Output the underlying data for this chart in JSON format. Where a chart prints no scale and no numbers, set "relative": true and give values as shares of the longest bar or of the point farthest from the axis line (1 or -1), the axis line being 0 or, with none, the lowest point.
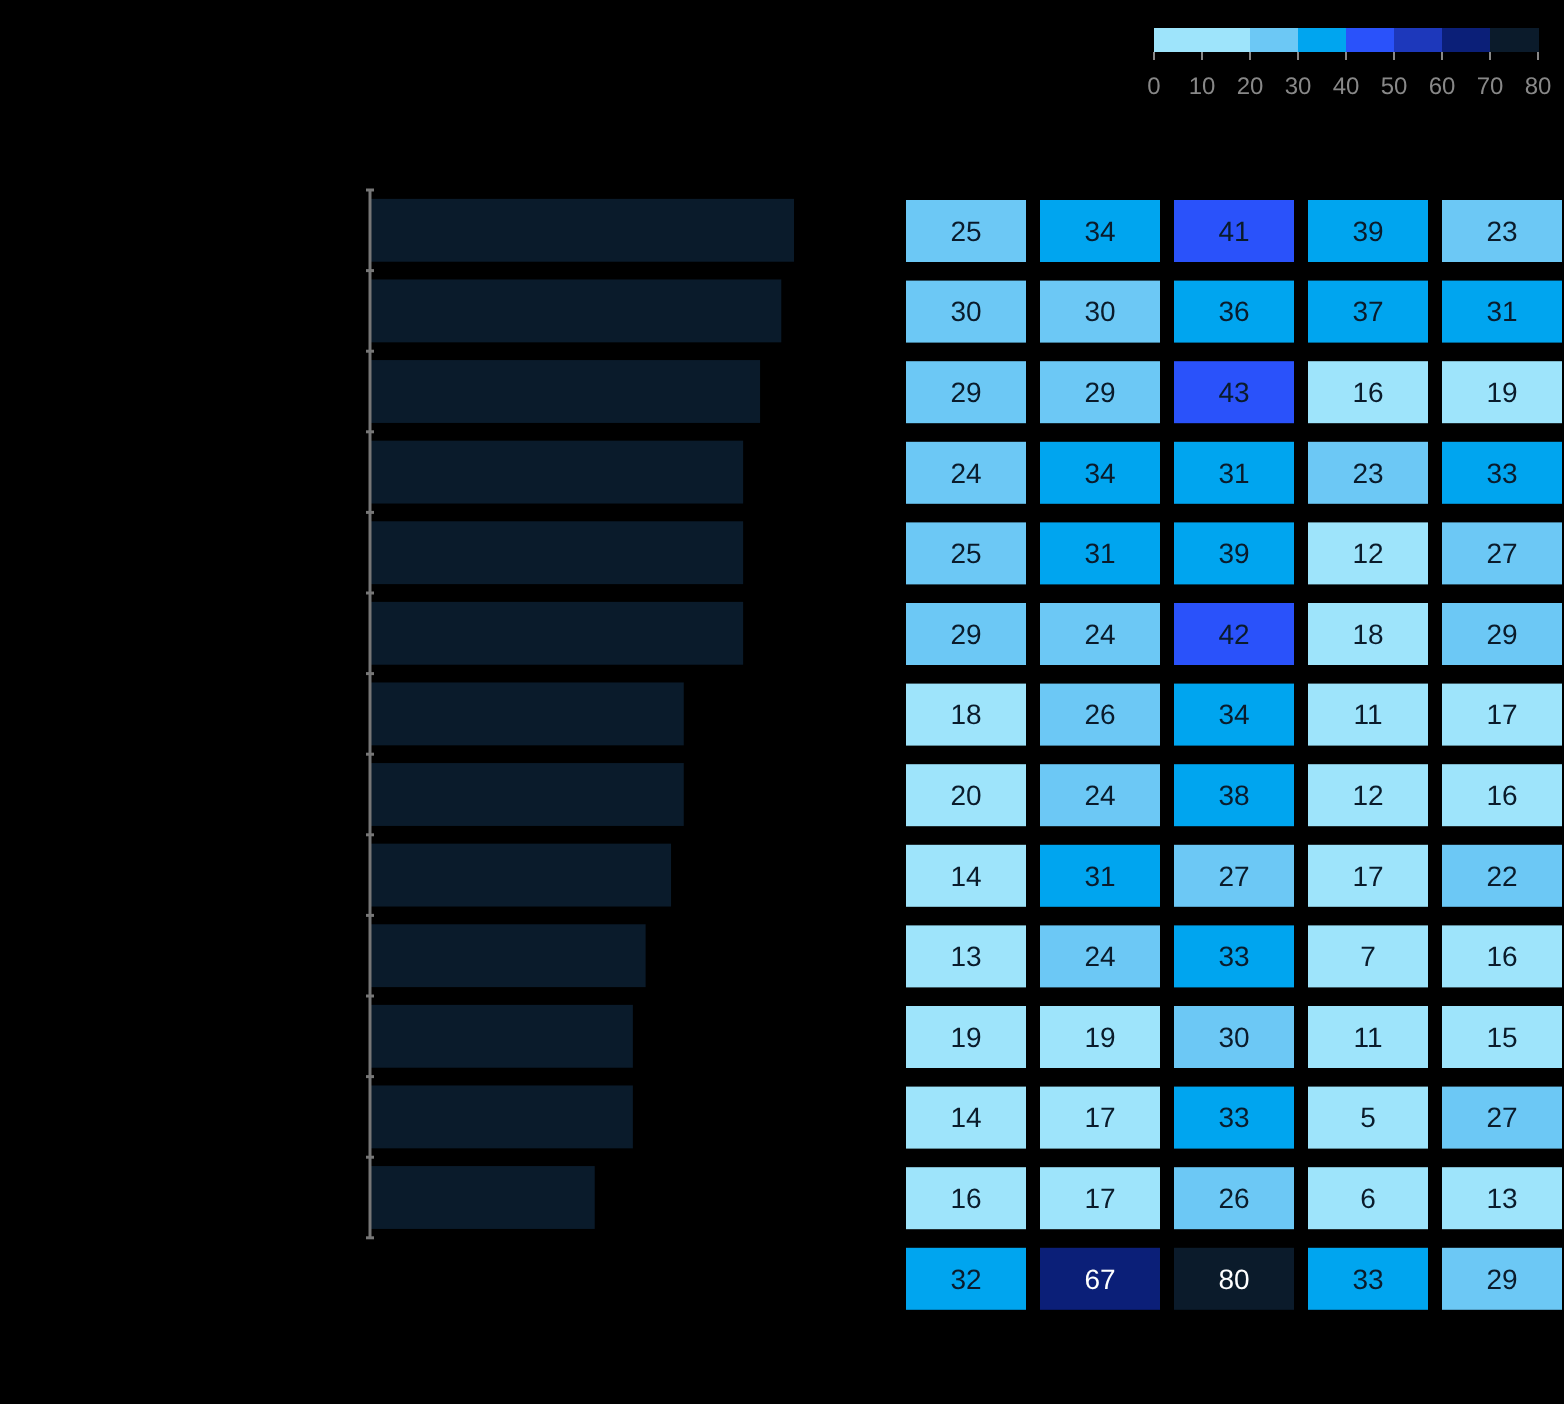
{
  "chart_data": [
    {
      "type": "bar",
      "orientation": "horizontal",
      "relative": true,
      "categories": [
        null,
        null,
        null,
        null,
        null,
        null,
        null,
        null,
        null,
        null,
        null,
        null,
        null
      ],
      "values": [
        1,
        0.97,
        0.92,
        0.88,
        0.88,
        0.88,
        0.74,
        0.74,
        0.71,
        0.65,
        0.62,
        0.62,
        0.53
      ],
      "color": "#0a1b2b"
    },
    {
      "type": "heatmap",
      "categories": [
        null,
        null,
        null,
        null,
        null
      ],
      "y_categories": [
        null,
        null,
        null,
        null,
        null,
        null,
        null,
        null,
        null,
        null,
        null,
        null,
        null,
        null
      ],
      "cells": [
        [
          25,
          34,
          41,
          39,
          23
        ],
        [
          30,
          30,
          36,
          37,
          31
        ],
        [
          29,
          29,
          43,
          16,
          19
        ],
        [
          24,
          34,
          31,
          23,
          33
        ],
        [
          25,
          31,
          39,
          12,
          27
        ],
        [
          29,
          24,
          42,
          18,
          29
        ],
        [
          18,
          26,
          34,
          11,
          17
        ],
        [
          20,
          24,
          38,
          12,
          16
        ],
        [
          14,
          31,
          27,
          17,
          22
        ],
        [
          13,
          24,
          33,
          7,
          16
        ],
        [
          19,
          19,
          30,
          11,
          15
        ],
        [
          14,
          17,
          33,
          5,
          27
        ],
        [
          16,
          17,
          26,
          6,
          13
        ],
        [
          32,
          67,
          80,
          33,
          29
        ]
      ],
      "data_labels": true,
      "clim": [
        0,
        80
      ],
      "cticks": [
        0,
        10,
        20,
        30,
        40,
        50,
        60,
        70,
        80
      ],
      "colors": [
        "#9ee4fb",
        "#9ee4fb",
        "#6cc8f5",
        "#00a5ef",
        "#2a52fa",
        "#1d38bb",
        "#0b1f78",
        "#0b1b2b"
      ]
    }
  ]
}
